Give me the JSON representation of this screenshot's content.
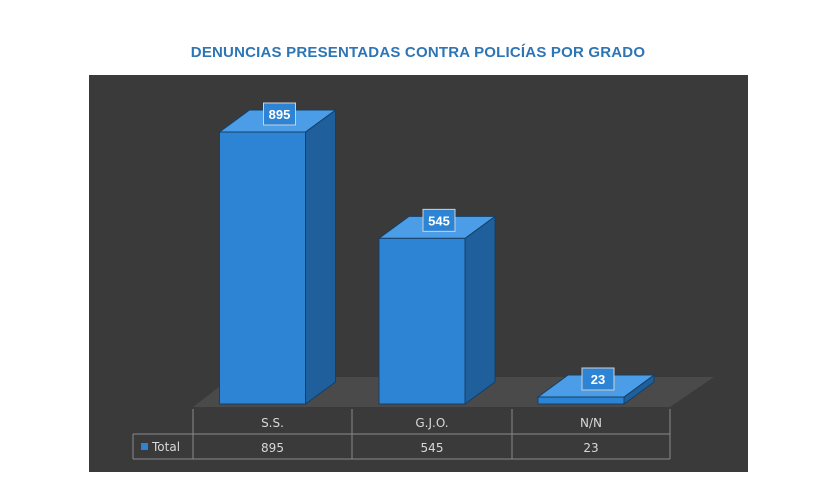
{
  "chart_data": {
    "type": "bar",
    "title": "DENUNCIAS PRESENTADAS CONTRA POLICÍAS POR GRADO",
    "categories": [
      "S.S.",
      "G.J.O.",
      "N/N"
    ],
    "series": [
      {
        "name": "Total",
        "values": [
          895,
          545,
          23
        ]
      }
    ],
    "value_labels": [
      "895",
      "545",
      "23"
    ],
    "legend_label": "Total",
    "table_values": [
      "895",
      "545",
      "23"
    ],
    "ylim": [
      0,
      1000
    ],
    "grid": false,
    "style": "3d-column with data table below",
    "colors": {
      "bar_front": "#2e84d4",
      "bar_side": "#1f5f9c",
      "bar_top": "#4a9de6",
      "background": "#3a3a3a",
      "floor": "#4a4a4a",
      "title": "#2e75b6"
    }
  }
}
